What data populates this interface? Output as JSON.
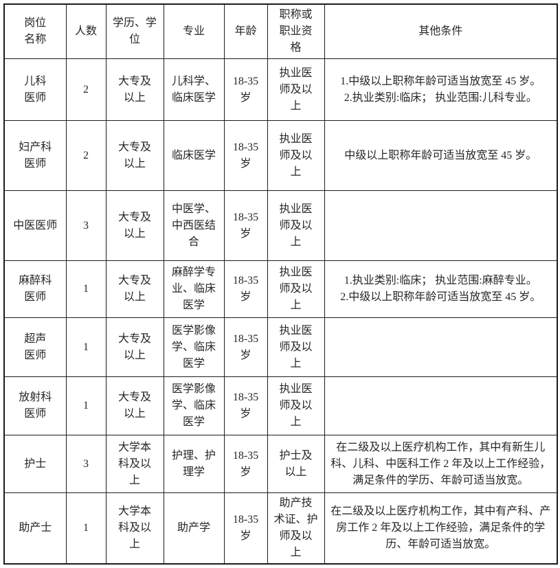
{
  "colors": {
    "background": "#ffffff",
    "border": "#1c1c1c",
    "text": "#262626"
  },
  "table": {
    "headers": [
      "岗位\n名称",
      "人数",
      "学历、学\n位",
      "专业",
      "年龄",
      "职称或\n职业资\n格",
      "其他条件"
    ],
    "rows": [
      {
        "position": "儿科\n医师",
        "count": "2",
        "education": "大专及\n以上",
        "major": "儿科学、\n临床医学",
        "age": "18-35\n岁",
        "qualification": "执业医\n师及以\n上",
        "other": "1.中级以上职称年龄可适当放宽至 45 岁。\n2.执业类别:临床； 执业范围:儿科专业。"
      },
      {
        "position": "妇产科\n医师",
        "count": "2",
        "education": "大专及\n以上",
        "major": "临床医学",
        "age": "18-35\n岁",
        "qualification": "执业医\n师及以\n上",
        "other": "中级以上职称年龄可适当放宽至 45 岁。"
      },
      {
        "position": "中医医师",
        "count": "3",
        "education": "大专及\n以上",
        "major": "中医学、\n中西医结\n合",
        "age": "18-35\n岁",
        "qualification": "执业医\n师及以\n上",
        "other": ""
      },
      {
        "position": "麻醉科\n医师",
        "count": "1",
        "education": "大专及\n以上",
        "major": "麻醉学专\n业、临床\n医学",
        "age": "18-35\n岁",
        "qualification": "执业医\n师及以\n上",
        "other": "1.执业类别:临床； 执业范围:麻醉专业。\n2.中级以上职称年龄可适当放宽至 45 岁。"
      },
      {
        "position": "超声\n医师",
        "count": "1",
        "education": "大专及\n以上",
        "major": "医学影像\n学、临床\n医学",
        "age": "18-35\n岁",
        "qualification": "执业医\n师及以\n上",
        "other": ""
      },
      {
        "position": "放射科\n医师",
        "count": "1",
        "education": "大专及\n以上",
        "major": "医学影像\n学、临床\n医学",
        "age": "18-35\n岁",
        "qualification": "执业医\n师及以\n上",
        "other": ""
      },
      {
        "position": "护士",
        "count": "3",
        "education": "大学本\n科及以\n上",
        "major": "护理、护\n理学",
        "age": "18-35\n岁",
        "qualification": "护士及\n以上",
        "other": "在二级及以上医疗机构工作，其中有新生儿科、儿科、中医科工作 2 年及以上工作经验，满足条件的学历、年龄可适当放宽。"
      },
      {
        "position": "助产士",
        "count": "1",
        "education": "大学本\n科及以\n上",
        "major": "助产学",
        "age": "18-35\n岁",
        "qualification": "助产技\n术证、护\n师及以\n上",
        "other": "在二级及以上医疗机构工作，其中有产科、产房工作 2 年及以上工作经验，满足条件的学历、年龄可适当放宽。"
      }
    ]
  }
}
